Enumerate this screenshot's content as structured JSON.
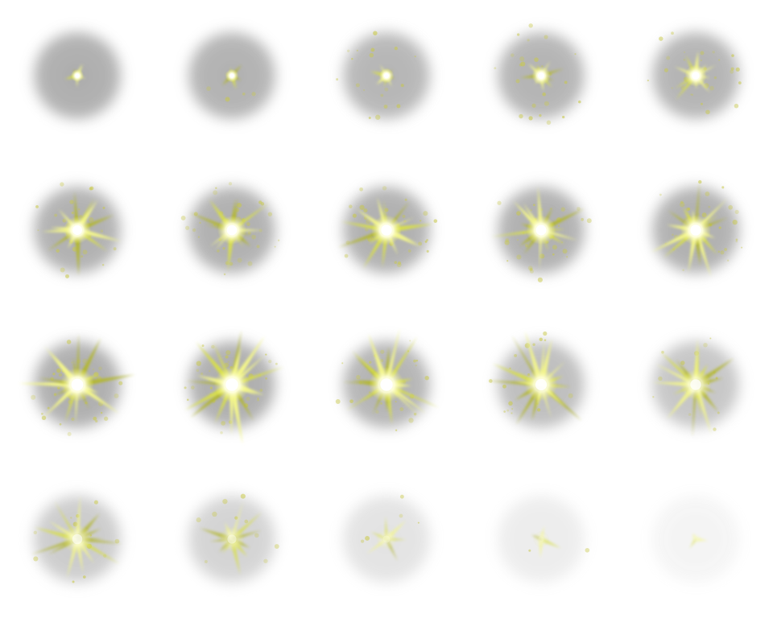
{
  "sprite_sheet": {
    "columns": 5,
    "rows": 4,
    "background": "#ffffff",
    "colors": {
      "halo": "#9a9a9a",
      "core": "#ffffff",
      "ray_bright": "#f4f78a",
      "ray_mid": "#d9e04a",
      "ray_dark": "#b4b830",
      "sparkle": "#c9c94a"
    },
    "frames": [
      {
        "index": 1,
        "halo": 0.82,
        "burst": 0.1,
        "rays": 5,
        "sparkles": 0.0,
        "core": 0.95
      },
      {
        "index": 2,
        "halo": 0.78,
        "burst": 0.11,
        "rays": 6,
        "sparkles": 0.1,
        "core": 0.95
      },
      {
        "index": 3,
        "halo": 0.74,
        "burst": 0.16,
        "rays": 8,
        "sparkles": 0.45,
        "core": 1.0
      },
      {
        "index": 4,
        "halo": 0.76,
        "burst": 0.28,
        "rays": 9,
        "sparkles": 0.6,
        "core": 1.0
      },
      {
        "index": 5,
        "halo": 0.76,
        "burst": 0.38,
        "rays": 10,
        "sparkles": 0.7,
        "core": 1.0
      },
      {
        "index": 6,
        "halo": 0.8,
        "burst": 0.55,
        "rays": 12,
        "sparkles": 0.85,
        "core": 1.0
      },
      {
        "index": 7,
        "halo": 0.8,
        "burst": 0.6,
        "rays": 13,
        "sparkles": 0.9,
        "core": 1.0
      },
      {
        "index": 8,
        "halo": 0.8,
        "burst": 0.65,
        "rays": 14,
        "sparkles": 0.9,
        "core": 1.0
      },
      {
        "index": 9,
        "halo": 0.8,
        "burst": 0.62,
        "rays": 14,
        "sparkles": 0.9,
        "core": 1.0
      },
      {
        "index": 10,
        "halo": 0.8,
        "burst": 0.65,
        "rays": 15,
        "sparkles": 0.9,
        "core": 1.0
      },
      {
        "index": 11,
        "halo": 0.82,
        "burst": 0.75,
        "rays": 16,
        "sparkles": 0.95,
        "core": 1.0
      },
      {
        "index": 12,
        "halo": 0.82,
        "burst": 0.8,
        "rays": 17,
        "sparkles": 0.95,
        "core": 1.0
      },
      {
        "index": 13,
        "halo": 0.76,
        "burst": 0.8,
        "rays": 18,
        "sparkles": 0.7,
        "core": 0.95
      },
      {
        "index": 14,
        "halo": 0.66,
        "burst": 0.72,
        "rays": 18,
        "sparkles": 0.5,
        "core": 0.85
      },
      {
        "index": 15,
        "halo": 0.58,
        "burst": 0.66,
        "rays": 16,
        "sparkles": 0.4,
        "core": 0.75
      },
      {
        "index": 16,
        "halo": 0.52,
        "burst": 0.6,
        "rays": 14,
        "sparkles": 0.3,
        "core": 0.6
      },
      {
        "index": 17,
        "halo": 0.44,
        "burst": 0.5,
        "rays": 11,
        "sparkles": 0.25,
        "core": 0.45
      },
      {
        "index": 18,
        "halo": 0.28,
        "burst": 0.35,
        "rays": 6,
        "sparkles": 0.12,
        "core": 0.3
      },
      {
        "index": 19,
        "halo": 0.18,
        "burst": 0.22,
        "rays": 4,
        "sparkles": 0.05,
        "core": 0.2
      },
      {
        "index": 20,
        "halo": 0.1,
        "burst": 0.1,
        "rays": 3,
        "sparkles": 0.0,
        "core": 0.1
      }
    ]
  }
}
